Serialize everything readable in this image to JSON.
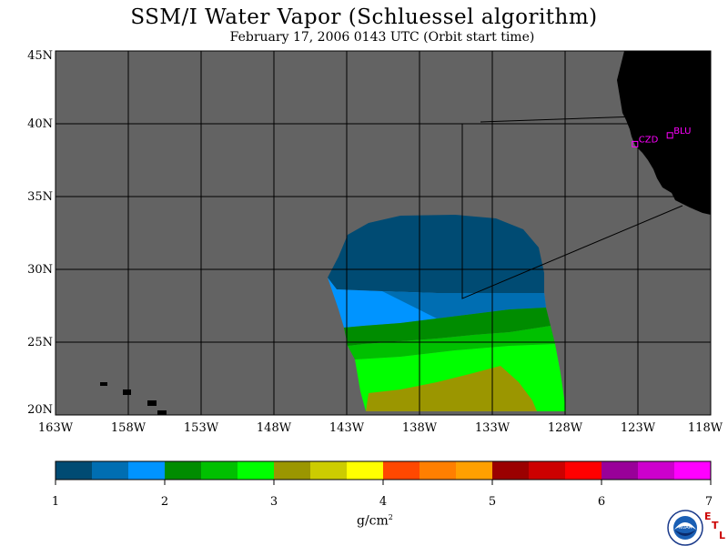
{
  "title": "SSM/I Water Vapor (Schluessel algorithm)",
  "subtitle": "February 17, 2006  0143 UTC  (Orbit start time)",
  "map": {
    "lat_labels": [
      "45N",
      "40N",
      "35N",
      "30N",
      "25N",
      "20N"
    ],
    "lon_labels": [
      "163W",
      "158W",
      "153W",
      "148W",
      "143W",
      "138W",
      "133W",
      "128W",
      "123W",
      "118W"
    ],
    "lat_range": [
      20,
      45
    ],
    "lon_range": [
      -163,
      -118
    ],
    "stations": [
      {
        "label": "CZD",
        "lat": 38.6,
        "lon": -123.2
      },
      {
        "label": "BLU",
        "lat": 39.2,
        "lon": -120.8
      }
    ],
    "colors": {
      "no_data": "#636363",
      "land": "#000000",
      "grid": "#000000",
      "station": "#ff00ff"
    }
  },
  "colorbar": {
    "tick_labels": [
      "1",
      "2",
      "3",
      "4",
      "5",
      "6",
      "7"
    ],
    "range": [
      1,
      7
    ],
    "colors": [
      "#004b73",
      "#006eb2",
      "#0094ff",
      "#008c00",
      "#00c000",
      "#00ff00",
      "#9b9600",
      "#cccc00",
      "#ffff00",
      "#ff4800",
      "#ff7f00",
      "#ffa000",
      "#9b0000",
      "#cc0000",
      "#ff0000",
      "#990099",
      "#cc00cc",
      "#ff00ff"
    ],
    "units": "g/cm",
    "units_exp": "2"
  },
  "logo": {
    "text": "NOAA",
    "letters": [
      "E",
      "T",
      "L"
    ]
  }
}
